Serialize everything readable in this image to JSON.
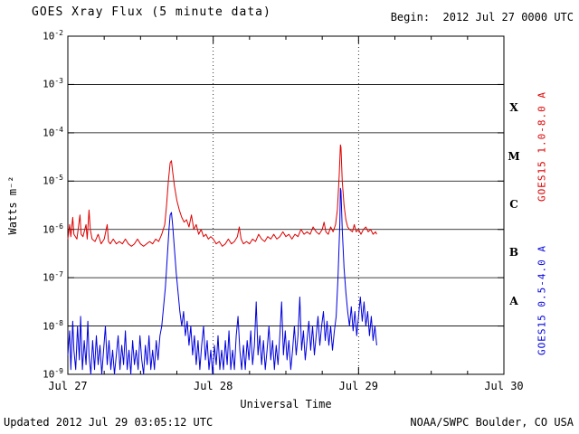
{
  "header": {
    "title": "GOES Xray Flux (5 minute data)",
    "begin": "Begin:  2012 Jul 27 0000 UTC"
  },
  "footer": {
    "updated": "Updated 2012 Jul 29 03:05:12 UTC",
    "source": "NOAA/SWPC Boulder, CO USA"
  },
  "chart_data": {
    "type": "line",
    "title": "GOES Xray Flux (5 minute data)",
    "xlabel": "Universal Time",
    "ylabel": "Watts m⁻²",
    "x_unit": "hours since 2012 Jul 27 0000 UTC",
    "x_range_hours": [
      0,
      72
    ],
    "y_log10_range": [
      -9,
      -2
    ],
    "grid": {
      "horizontal_solid_exponents": [
        -3,
        -4,
        -5,
        -6,
        -7,
        -8
      ],
      "vertical_dotted_hours": [
        24,
        48
      ]
    },
    "x_ticks": [
      {
        "t": 0,
        "label": "Jul 27"
      },
      {
        "t": 24,
        "label": "Jul 28"
      },
      {
        "t": 48,
        "label": "Jul 29"
      },
      {
        "t": 72,
        "label": "Jul 30"
      }
    ],
    "y_tick_exponents": [
      -2,
      -3,
      -4,
      -5,
      -6,
      -7,
      -8,
      -9
    ],
    "flare_classes": [
      {
        "label": "X",
        "log_center": -3.5
      },
      {
        "label": "M",
        "log_center": -4.5
      },
      {
        "label": "C",
        "log_center": -5.5
      },
      {
        "label": "B",
        "log_center": -6.5
      },
      {
        "label": "A",
        "log_center": -7.5
      }
    ],
    "series": [
      {
        "name": "GOES15 long",
        "axis_label": "GOES15 1.0-8.0 A",
        "color": "#dd0000",
        "points_t_log10flux": [
          [
            0,
            -6.2
          ],
          [
            0.3,
            -5.9
          ],
          [
            0.5,
            -6.15
          ],
          [
            0.8,
            -5.75
          ],
          [
            1,
            -6.1
          ],
          [
            1.5,
            -6.2
          ],
          [
            2,
            -5.7
          ],
          [
            2.2,
            -6.1
          ],
          [
            2.5,
            -6.15
          ],
          [
            3,
            -5.9
          ],
          [
            3.2,
            -6.2
          ],
          [
            3.5,
            -5.6
          ],
          [
            3.7,
            -6.0
          ],
          [
            4,
            -6.2
          ],
          [
            4.5,
            -6.25
          ],
          [
            5,
            -6.1
          ],
          [
            5.5,
            -6.3
          ],
          [
            6,
            -6.2
          ],
          [
            6.5,
            -5.9
          ],
          [
            6.7,
            -6.25
          ],
          [
            7,
            -6.3
          ],
          [
            7.5,
            -6.2
          ],
          [
            8,
            -6.3
          ],
          [
            8.5,
            -6.25
          ],
          [
            9,
            -6.3
          ],
          [
            9.5,
            -6.2
          ],
          [
            10,
            -6.3
          ],
          [
            10.5,
            -6.35
          ],
          [
            11,
            -6.3
          ],
          [
            11.5,
            -6.2
          ],
          [
            12,
            -6.3
          ],
          [
            12.5,
            -6.35
          ],
          [
            13,
            -6.3
          ],
          [
            13.5,
            -6.25
          ],
          [
            14,
            -6.3
          ],
          [
            14.5,
            -6.2
          ],
          [
            15,
            -6.25
          ],
          [
            15.5,
            -6.1
          ],
          [
            16,
            -5.9
          ],
          [
            16.3,
            -5.5
          ],
          [
            16.6,
            -5.0
          ],
          [
            16.9,
            -4.62
          ],
          [
            17.1,
            -4.58
          ],
          [
            17.3,
            -4.8
          ],
          [
            17.6,
            -5.1
          ],
          [
            18,
            -5.4
          ],
          [
            18.4,
            -5.6
          ],
          [
            18.8,
            -5.75
          ],
          [
            19.2,
            -5.85
          ],
          [
            19.6,
            -5.8
          ],
          [
            20,
            -5.95
          ],
          [
            20.4,
            -5.7
          ],
          [
            20.8,
            -6.0
          ],
          [
            21.2,
            -5.9
          ],
          [
            21.6,
            -6.1
          ],
          [
            22,
            -6.0
          ],
          [
            22.4,
            -6.15
          ],
          [
            22.8,
            -6.1
          ],
          [
            23.2,
            -6.2
          ],
          [
            23.6,
            -6.15
          ],
          [
            24,
            -6.2
          ],
          [
            24.5,
            -6.3
          ],
          [
            25,
            -6.25
          ],
          [
            25.5,
            -6.35
          ],
          [
            26,
            -6.3
          ],
          [
            26.5,
            -6.2
          ],
          [
            27,
            -6.3
          ],
          [
            27.5,
            -6.25
          ],
          [
            28,
            -6.15
          ],
          [
            28.3,
            -5.95
          ],
          [
            28.6,
            -6.2
          ],
          [
            29,
            -6.3
          ],
          [
            29.5,
            -6.25
          ],
          [
            30,
            -6.3
          ],
          [
            30.5,
            -6.2
          ],
          [
            31,
            -6.25
          ],
          [
            31.5,
            -6.1
          ],
          [
            32,
            -6.2
          ],
          [
            32.5,
            -6.25
          ],
          [
            33,
            -6.15
          ],
          [
            33.5,
            -6.2
          ],
          [
            34,
            -6.1
          ],
          [
            34.5,
            -6.2
          ],
          [
            35,
            -6.15
          ],
          [
            35.5,
            -6.05
          ],
          [
            36,
            -6.15
          ],
          [
            36.5,
            -6.1
          ],
          [
            37,
            -6.2
          ],
          [
            37.5,
            -6.1
          ],
          [
            38,
            -6.15
          ],
          [
            38.5,
            -6.0
          ],
          [
            39,
            -6.1
          ],
          [
            39.5,
            -6.05
          ],
          [
            40,
            -6.1
          ],
          [
            40.5,
            -5.95
          ],
          [
            41,
            -6.05
          ],
          [
            41.5,
            -6.1
          ],
          [
            42,
            -6.0
          ],
          [
            42.3,
            -5.85
          ],
          [
            42.6,
            -6.05
          ],
          [
            43,
            -6.1
          ],
          [
            43.4,
            -5.95
          ],
          [
            43.8,
            -6.05
          ],
          [
            44.2,
            -5.9
          ],
          [
            44.5,
            -5.6
          ],
          [
            44.8,
            -4.9
          ],
          [
            45,
            -4.25
          ],
          [
            45.1,
            -4.3
          ],
          [
            45.3,
            -5.0
          ],
          [
            45.6,
            -5.5
          ],
          [
            45.9,
            -5.8
          ],
          [
            46.2,
            -5.95
          ],
          [
            46.5,
            -6.0
          ],
          [
            47,
            -6.05
          ],
          [
            47.3,
            -5.9
          ],
          [
            47.6,
            -6.05
          ],
          [
            48,
            -6.0
          ],
          [
            48.4,
            -6.1
          ],
          [
            48.8,
            -6.0
          ],
          [
            49.2,
            -5.95
          ],
          [
            49.6,
            -6.05
          ],
          [
            50,
            -6.0
          ],
          [
            50.4,
            -6.1
          ],
          [
            50.8,
            -6.05
          ],
          [
            51,
            -6.1
          ]
        ]
      },
      {
        "name": "GOES15 short",
        "axis_label": "GOES15 0.5-4.0 A",
        "color": "#0000dd",
        "points_t_log10flux": [
          [
            0,
            -8.6
          ],
          [
            0.3,
            -8.1
          ],
          [
            0.5,
            -8.9
          ],
          [
            0.8,
            -7.9
          ],
          [
            1,
            -8.5
          ],
          [
            1.3,
            -8.9
          ],
          [
            1.6,
            -8.0
          ],
          [
            1.9,
            -8.7
          ],
          [
            2.1,
            -7.8
          ],
          [
            2.4,
            -8.9
          ],
          [
            2.7,
            -8.3
          ],
          [
            3,
            -8.8
          ],
          [
            3.3,
            -7.9
          ],
          [
            3.5,
            -8.6
          ],
          [
            3.8,
            -9.0
          ],
          [
            4.1,
            -8.3
          ],
          [
            4.4,
            -8.9
          ],
          [
            4.7,
            -8.2
          ],
          [
            5,
            -8.8
          ],
          [
            5.3,
            -8.4
          ],
          [
            5.6,
            -9.0
          ],
          [
            5.9,
            -8.5
          ],
          [
            6.2,
            -8.0
          ],
          [
            6.5,
            -8.8
          ],
          [
            6.8,
            -8.3
          ],
          [
            7.1,
            -8.9
          ],
          [
            7.4,
            -8.5
          ],
          [
            7.7,
            -9.0
          ],
          [
            8,
            -8.6
          ],
          [
            8.3,
            -8.2
          ],
          [
            8.6,
            -8.9
          ],
          [
            8.9,
            -8.4
          ],
          [
            9.2,
            -8.8
          ],
          [
            9.5,
            -8.1
          ],
          [
            9.8,
            -8.9
          ],
          [
            10.1,
            -8.5
          ],
          [
            10.4,
            -9.0
          ],
          [
            10.7,
            -8.3
          ],
          [
            11,
            -8.8
          ],
          [
            11.3,
            -8.5
          ],
          [
            11.6,
            -8.9
          ],
          [
            11.9,
            -8.2
          ],
          [
            12.2,
            -8.7
          ],
          [
            12.5,
            -9.0
          ],
          [
            12.8,
            -8.4
          ],
          [
            13.1,
            -8.8
          ],
          [
            13.4,
            -8.2
          ],
          [
            13.7,
            -8.9
          ],
          [
            14,
            -8.5
          ],
          [
            14.3,
            -8.9
          ],
          [
            14.6,
            -8.3
          ],
          [
            14.9,
            -8.7
          ],
          [
            15.2,
            -8.2
          ],
          [
            15.5,
            -8.0
          ],
          [
            15.8,
            -7.6
          ],
          [
            16.1,
            -7.2
          ],
          [
            16.4,
            -6.6
          ],
          [
            16.7,
            -6.0
          ],
          [
            16.9,
            -5.7
          ],
          [
            17.1,
            -5.65
          ],
          [
            17.3,
            -5.9
          ],
          [
            17.6,
            -6.4
          ],
          [
            17.9,
            -6.9
          ],
          [
            18.2,
            -7.3
          ],
          [
            18.5,
            -7.7
          ],
          [
            18.8,
            -8.0
          ],
          [
            19.1,
            -7.7
          ],
          [
            19.4,
            -8.2
          ],
          [
            19.7,
            -7.9
          ],
          [
            20,
            -8.4
          ],
          [
            20.3,
            -8.0
          ],
          [
            20.6,
            -8.6
          ],
          [
            20.9,
            -8.2
          ],
          [
            21.2,
            -8.8
          ],
          [
            21.5,
            -8.3
          ],
          [
            21.8,
            -8.9
          ],
          [
            22.1,
            -8.4
          ],
          [
            22.4,
            -8.0
          ],
          [
            22.7,
            -8.7
          ],
          [
            23,
            -8.3
          ],
          [
            23.3,
            -8.9
          ],
          [
            23.6,
            -8.5
          ],
          [
            23.9,
            -9.0
          ],
          [
            24.2,
            -8.4
          ],
          [
            24.5,
            -8.8
          ],
          [
            24.8,
            -8.2
          ],
          [
            25.1,
            -8.9
          ],
          [
            25.4,
            -8.5
          ],
          [
            25.7,
            -8.9
          ],
          [
            26,
            -8.3
          ],
          [
            26.3,
            -8.8
          ],
          [
            26.6,
            -8.1
          ],
          [
            26.9,
            -8.9
          ],
          [
            27.2,
            -8.5
          ],
          [
            27.5,
            -8.9
          ],
          [
            27.8,
            -8.2
          ],
          [
            28.1,
            -7.8
          ],
          [
            28.4,
            -8.5
          ],
          [
            28.7,
            -8.9
          ],
          [
            29,
            -8.4
          ],
          [
            29.3,
            -8.9
          ],
          [
            29.6,
            -8.3
          ],
          [
            29.9,
            -8.7
          ],
          [
            30.2,
            -8.1
          ],
          [
            30.5,
            -8.8
          ],
          [
            30.8,
            -8.4
          ],
          [
            31.1,
            -7.5
          ],
          [
            31.4,
            -8.6
          ],
          [
            31.7,
            -8.2
          ],
          [
            32,
            -8.8
          ],
          [
            32.3,
            -8.3
          ],
          [
            32.6,
            -8.9
          ],
          [
            32.9,
            -8.5
          ],
          [
            33.2,
            -8.0
          ],
          [
            33.5,
            -8.7
          ],
          [
            33.8,
            -8.3
          ],
          [
            34.1,
            -8.9
          ],
          [
            34.4,
            -8.4
          ],
          [
            34.7,
            -8.8
          ],
          [
            35,
            -8.2
          ],
          [
            35.3,
            -7.5
          ],
          [
            35.6,
            -8.6
          ],
          [
            35.9,
            -8.1
          ],
          [
            36.2,
            -8.7
          ],
          [
            36.5,
            -8.3
          ],
          [
            36.8,
            -8.9
          ],
          [
            37.1,
            -8.5
          ],
          [
            37.4,
            -8.0
          ],
          [
            37.7,
            -8.6
          ],
          [
            38,
            -8.2
          ],
          [
            38.3,
            -7.4
          ],
          [
            38.6,
            -8.5
          ],
          [
            38.9,
            -8.1
          ],
          [
            39.2,
            -8.7
          ],
          [
            39.5,
            -8.3
          ],
          [
            39.8,
            -7.9
          ],
          [
            40.1,
            -8.5
          ],
          [
            40.4,
            -8.0
          ],
          [
            40.7,
            -8.6
          ],
          [
            41,
            -8.2
          ],
          [
            41.3,
            -7.8
          ],
          [
            41.6,
            -8.4
          ],
          [
            41.9,
            -8.0
          ],
          [
            42.2,
            -7.7
          ],
          [
            42.5,
            -8.3
          ],
          [
            42.8,
            -7.9
          ],
          [
            43.1,
            -8.4
          ],
          [
            43.4,
            -8.0
          ],
          [
            43.7,
            -8.5
          ],
          [
            44,
            -8.1
          ],
          [
            44.3,
            -7.8
          ],
          [
            44.6,
            -7.0
          ],
          [
            44.9,
            -5.9
          ],
          [
            45,
            -5.15
          ],
          [
            45.1,
            -5.2
          ],
          [
            45.3,
            -6.0
          ],
          [
            45.6,
            -6.8
          ],
          [
            45.9,
            -7.3
          ],
          [
            46.2,
            -7.7
          ],
          [
            46.5,
            -8.0
          ],
          [
            46.8,
            -7.6
          ],
          [
            47.1,
            -8.1
          ],
          [
            47.4,
            -7.7
          ],
          [
            47.7,
            -8.2
          ],
          [
            48,
            -7.8
          ],
          [
            48.3,
            -7.4
          ],
          [
            48.6,
            -7.9
          ],
          [
            48.9,
            -7.5
          ],
          [
            49.2,
            -8.0
          ],
          [
            49.5,
            -7.7
          ],
          [
            49.8,
            -8.2
          ],
          [
            50.1,
            -7.8
          ],
          [
            50.4,
            -8.3
          ],
          [
            50.7,
            -8.0
          ],
          [
            51,
            -8.4
          ]
        ]
      }
    ]
  }
}
